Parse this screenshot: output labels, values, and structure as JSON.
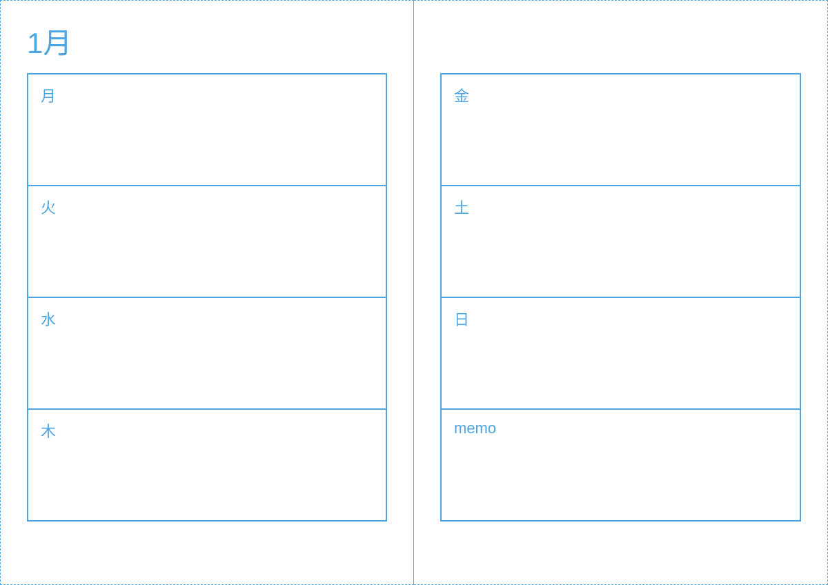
{
  "planner": {
    "type": "weekly-planner",
    "month_title": "1月",
    "colors": {
      "primary": "#4da6e0",
      "background": "#ffffff",
      "text": "#4da6e0"
    },
    "page_border_style": "dashed",
    "cell_border_style": "solid",
    "cell_border_width": 2,
    "title_fontsize": 42,
    "label_fontsize": 22,
    "left_page": {
      "cells": [
        {
          "label": "月"
        },
        {
          "label": "火"
        },
        {
          "label": "水"
        },
        {
          "label": "木"
        }
      ]
    },
    "right_page": {
      "cells": [
        {
          "label": "金"
        },
        {
          "label": "土"
        },
        {
          "label": "日"
        },
        {
          "label": "memo"
        }
      ]
    }
  }
}
